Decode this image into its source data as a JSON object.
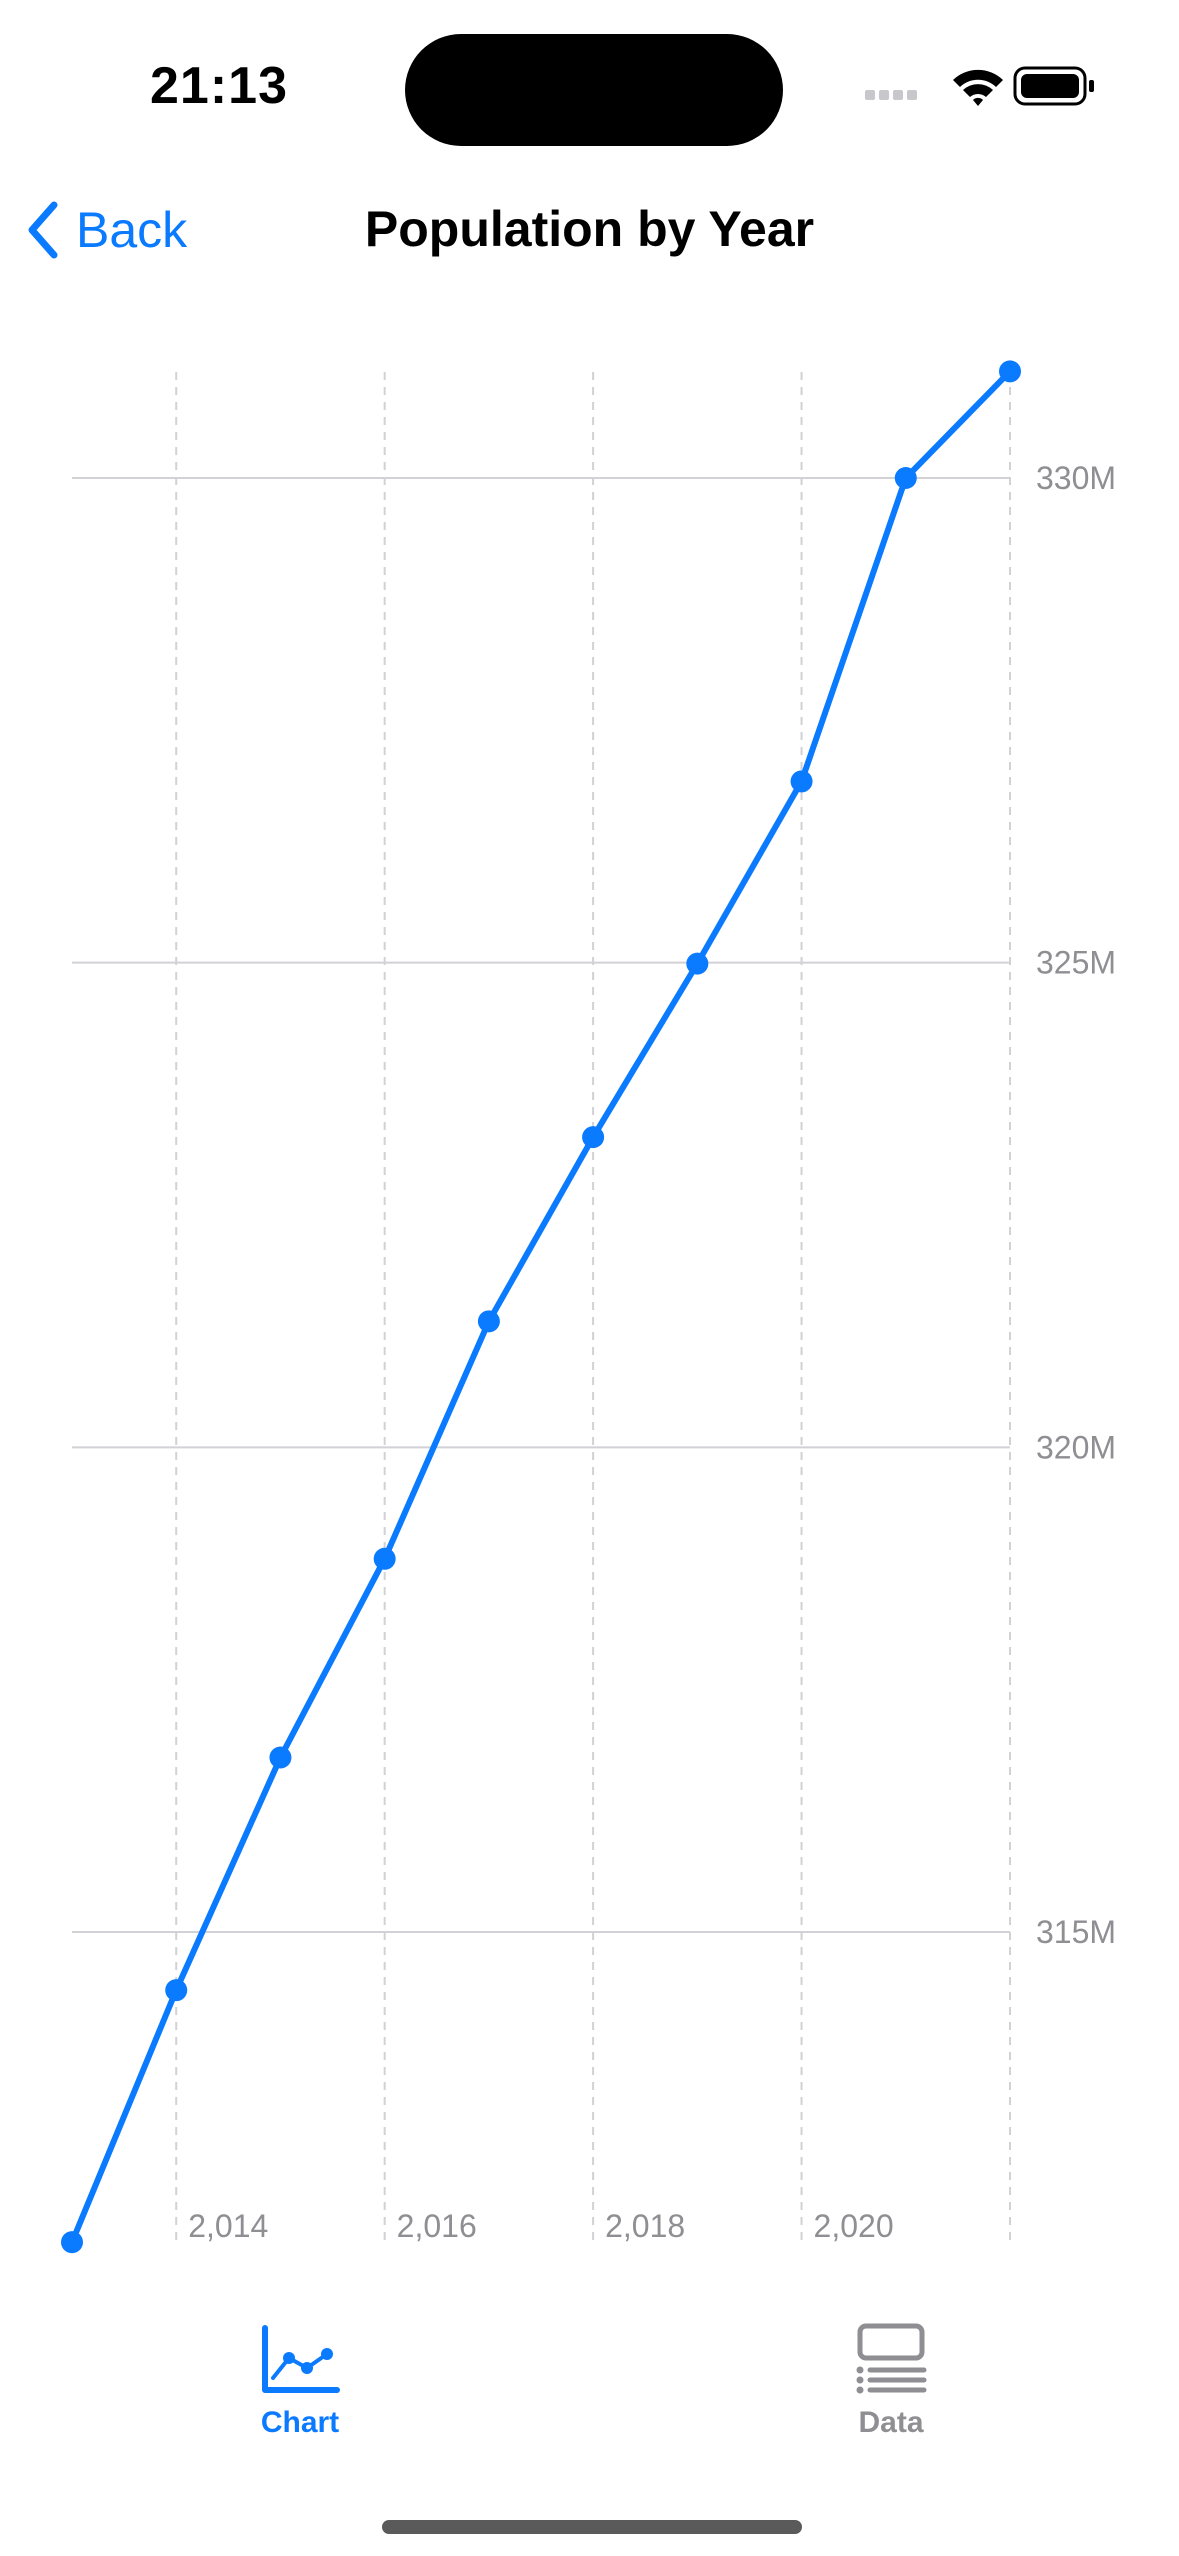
{
  "status_bar": {
    "time": "21:13",
    "icons": [
      "cellular-signal-icon",
      "wifi-icon",
      "battery-icon"
    ]
  },
  "nav": {
    "back_label": "Back",
    "title": "Population by Year"
  },
  "colors": {
    "accent": "#0a7aff",
    "inactive": "#8e8e93",
    "grid": "#d1d1d6"
  },
  "chart_data": {
    "type": "line",
    "title": "",
    "xlabel": "",
    "ylabel": "",
    "x": [
      2013,
      2014,
      2015,
      2016,
      2017,
      2018,
      2019,
      2020,
      2021,
      2022
    ],
    "series": [
      {
        "values": [
          311.8,
          314.4,
          316.8,
          318.85,
          321.3,
          323.2,
          324.99,
          326.87,
          330.0,
          331.1
        ]
      }
    ],
    "xlim": [
      2013,
      2022
    ],
    "ylim": [
      311.5,
      331.5
    ],
    "x_ticks": [
      2014,
      2016,
      2018,
      2020
    ],
    "x_tick_labels": [
      "2,014",
      "2,016",
      "2,018",
      "2,020"
    ],
    "x_vertical_gridlines": [
      2014,
      2016,
      2018,
      2020,
      2022
    ],
    "y_ticks": [
      315,
      320,
      325,
      330
    ],
    "y_tick_labels": [
      "315M",
      "320M",
      "325M",
      "330M"
    ],
    "y_axis_position": "right",
    "grid": true,
    "legend": "none"
  },
  "tabs": [
    {
      "label": "Chart",
      "icon": "line-chart-icon",
      "selected": true
    },
    {
      "label": "Data",
      "icon": "data-list-icon",
      "selected": false
    }
  ]
}
